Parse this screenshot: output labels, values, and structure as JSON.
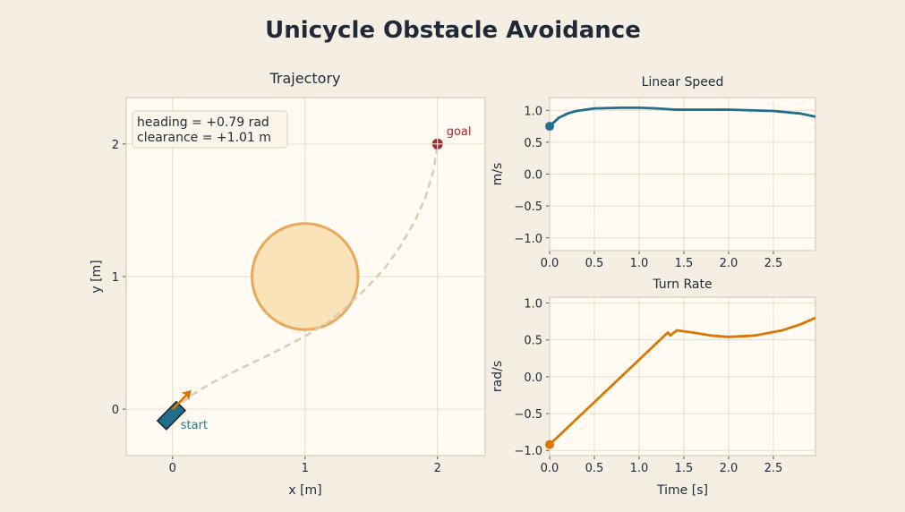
{
  "title": "Unicycle Obstacle Avoidance",
  "colors": {
    "bg": "#f5efe3",
    "axes": "#fffbf2",
    "grid": "#e6dcc8",
    "speed": "#1f6e8c",
    "turn": "#d97706",
    "obstacle_fill": "#fae3b8",
    "obstacle_edge": "#e8a95c",
    "path": "#d8cdb6",
    "goal": "#a3292b",
    "start": "#1f6e8c"
  },
  "chart_data": [
    {
      "type": "scatter",
      "title": "Trajectory",
      "xlabel": "x [m]",
      "ylabel": "y [m]",
      "xlim": [
        -0.35,
        2.36
      ],
      "ylim": [
        -0.35,
        2.35
      ],
      "xticks": [
        0,
        1,
        2
      ],
      "yticks": [
        0,
        1,
        2
      ],
      "grid": true,
      "path": [
        [
          0,
          0
        ],
        [
          0.15,
          0.11
        ],
        [
          0.3,
          0.2
        ],
        [
          0.5,
          0.3
        ],
        [
          0.75,
          0.42
        ],
        [
          1.0,
          0.55
        ],
        [
          1.15,
          0.64
        ],
        [
          1.3,
          0.76
        ],
        [
          1.45,
          0.9
        ],
        [
          1.6,
          1.06
        ],
        [
          1.72,
          1.23
        ],
        [
          1.83,
          1.42
        ],
        [
          1.91,
          1.6
        ],
        [
          1.97,
          1.8
        ],
        [
          2.0,
          2.0
        ]
      ],
      "obstacle": {
        "center": [
          1,
          1
        ],
        "radius": 0.4
      },
      "start": {
        "x": 0,
        "y": 0,
        "heading": 0.79,
        "label": "start"
      },
      "goal": {
        "x": 2,
        "y": 2,
        "label": "goal"
      },
      "annotation": [
        "heading = +0.79 rad",
        "clearance = +1.01 m"
      ]
    },
    {
      "type": "line",
      "title": "Linear Speed",
      "xlabel": "",
      "ylabel": "m/s",
      "xlim": [
        0,
        2.97
      ],
      "ylim": [
        -1.2,
        1.2
      ],
      "xticks": [
        0,
        0.5,
        1.0,
        1.5,
        2.0,
        2.5
      ],
      "yticks": [
        1.0,
        0.5,
        0.0,
        -0.5,
        -1.0
      ],
      "x": [
        0,
        0.1,
        0.2,
        0.3,
        0.5,
        0.8,
        1.0,
        1.2,
        1.4,
        1.5,
        2.0,
        2.5,
        2.8,
        2.97
      ],
      "y": [
        0.75,
        0.88,
        0.95,
        0.99,
        1.03,
        1.04,
        1.04,
        1.03,
        1.01,
        1.01,
        1.01,
        0.99,
        0.95,
        0.9
      ]
    },
    {
      "type": "line",
      "title": "Turn Rate",
      "xlabel": "Time [s]",
      "ylabel": "rad/s",
      "xlim": [
        0,
        2.97
      ],
      "ylim": [
        -1.07,
        1.08
      ],
      "xticks": [
        0,
        0.5,
        1.0,
        1.5,
        2.0,
        2.5
      ],
      "yticks": [
        1.0,
        0.5,
        0.0,
        -0.5,
        -1.0
      ],
      "x": [
        0,
        1.32,
        1.35,
        1.42,
        1.6,
        1.8,
        2.0,
        2.3,
        2.6,
        2.8,
        2.97
      ],
      "y": [
        -0.92,
        0.6,
        0.56,
        0.63,
        0.6,
        0.56,
        0.54,
        0.56,
        0.63,
        0.71,
        0.8
      ]
    }
  ]
}
